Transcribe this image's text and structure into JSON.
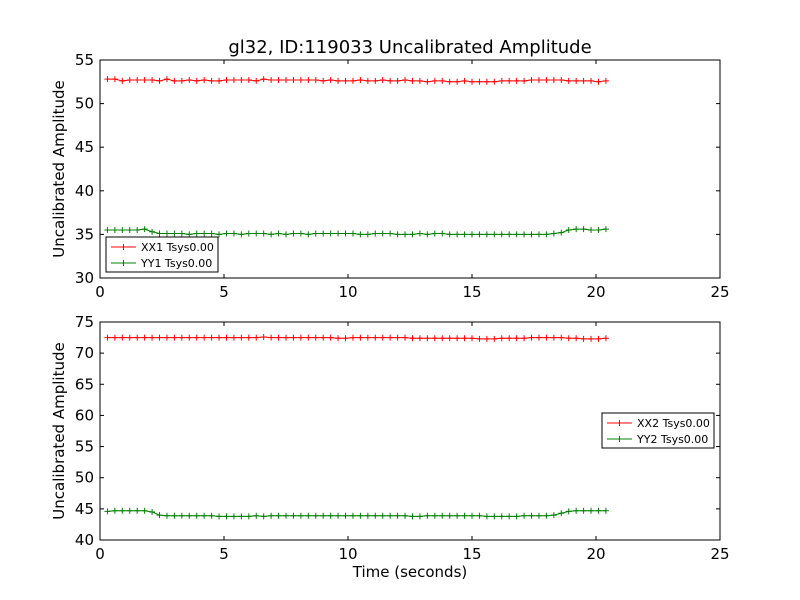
{
  "figure": {
    "title": "gl32, ID:119033 Uncalibrated Amplitude",
    "xlabel": "Time (seconds)"
  },
  "chart_data": [
    {
      "type": "line",
      "ylabel": "Uncalibrated Amplitude",
      "xlim": [
        0,
        25
      ],
      "ylim": [
        30,
        55
      ],
      "xticks": [
        0,
        5,
        10,
        15,
        20,
        25
      ],
      "yticks": [
        30,
        35,
        40,
        45,
        50,
        55
      ],
      "legend_position": "lower-left",
      "marker": "plus",
      "x": [
        0.3,
        0.6,
        0.9,
        1.2,
        1.5,
        1.8,
        2.1,
        2.4,
        2.7,
        3.0,
        3.3,
        3.6,
        3.9,
        4.2,
        4.5,
        4.8,
        5.1,
        5.4,
        5.7,
        6.0,
        6.3,
        6.6,
        6.9,
        7.2,
        7.5,
        7.8,
        8.1,
        8.4,
        8.7,
        9.0,
        9.3,
        9.6,
        9.9,
        10.2,
        10.5,
        10.8,
        11.1,
        11.4,
        11.7,
        12.0,
        12.3,
        12.6,
        12.9,
        13.2,
        13.5,
        13.8,
        14.1,
        14.4,
        14.7,
        15.0,
        15.3,
        15.6,
        15.9,
        16.2,
        16.5,
        16.8,
        17.1,
        17.4,
        17.7,
        18.0,
        18.3,
        18.6,
        18.9,
        19.2,
        19.5,
        19.8,
        20.1,
        20.4
      ],
      "series": [
        {
          "name": "XX1 Tsys0.00",
          "color": "#ff0000",
          "values": [
            52.8,
            52.8,
            52.6,
            52.7,
            52.7,
            52.7,
            52.7,
            52.6,
            52.8,
            52.6,
            52.6,
            52.7,
            52.6,
            52.7,
            52.6,
            52.6,
            52.7,
            52.7,
            52.7,
            52.7,
            52.6,
            52.8,
            52.7,
            52.7,
            52.7,
            52.7,
            52.7,
            52.7,
            52.7,
            52.6,
            52.7,
            52.6,
            52.6,
            52.6,
            52.7,
            52.6,
            52.6,
            52.7,
            52.6,
            52.6,
            52.7,
            52.6,
            52.6,
            52.5,
            52.6,
            52.6,
            52.5,
            52.5,
            52.6,
            52.5,
            52.5,
            52.5,
            52.5,
            52.6,
            52.6,
            52.6,
            52.6,
            52.7,
            52.7,
            52.7,
            52.7,
            52.7,
            52.6,
            52.6,
            52.6,
            52.6,
            52.5,
            52.6
          ]
        },
        {
          "name": "YY1 Tsys0.00",
          "color": "#008000",
          "values": [
            35.5,
            35.5,
            35.5,
            35.5,
            35.5,
            35.6,
            35.3,
            35.1,
            35.1,
            35.1,
            35.1,
            35.0,
            35.1,
            35.1,
            35.1,
            35.0,
            35.1,
            35.1,
            35.0,
            35.1,
            35.1,
            35.1,
            35.0,
            35.1,
            35.0,
            35.1,
            35.1,
            35.0,
            35.1,
            35.1,
            35.1,
            35.1,
            35.1,
            35.1,
            35.0,
            35.0,
            35.1,
            35.1,
            35.1,
            35.0,
            35.0,
            35.0,
            35.1,
            35.0,
            35.1,
            35.1,
            35.0,
            35.0,
            35.0,
            35.0,
            35.0,
            35.0,
            35.0,
            35.0,
            35.0,
            35.0,
            35.0,
            35.0,
            35.0,
            35.0,
            35.1,
            35.2,
            35.5,
            35.6,
            35.6,
            35.5,
            35.5,
            35.6
          ]
        }
      ]
    },
    {
      "type": "line",
      "ylabel": "Uncalibrated Amplitude",
      "xlim": [
        0,
        25
      ],
      "ylim": [
        40,
        75
      ],
      "xticks": [
        0,
        5,
        10,
        15,
        20,
        25
      ],
      "yticks": [
        40,
        45,
        50,
        55,
        60,
        65,
        70,
        75
      ],
      "legend_position": "center-right",
      "marker": "plus",
      "x": [
        0.3,
        0.6,
        0.9,
        1.2,
        1.5,
        1.8,
        2.1,
        2.4,
        2.7,
        3.0,
        3.3,
        3.6,
        3.9,
        4.2,
        4.5,
        4.8,
        5.1,
        5.4,
        5.7,
        6.0,
        6.3,
        6.6,
        6.9,
        7.2,
        7.5,
        7.8,
        8.1,
        8.4,
        8.7,
        9.0,
        9.3,
        9.6,
        9.9,
        10.2,
        10.5,
        10.8,
        11.1,
        11.4,
        11.7,
        12.0,
        12.3,
        12.6,
        12.9,
        13.2,
        13.5,
        13.8,
        14.1,
        14.4,
        14.7,
        15.0,
        15.3,
        15.6,
        15.9,
        16.2,
        16.5,
        16.8,
        17.1,
        17.4,
        17.7,
        18.0,
        18.3,
        18.6,
        18.9,
        19.2,
        19.5,
        19.8,
        20.1,
        20.4
      ],
      "series": [
        {
          "name": "XX2 Tsys0.00",
          "color": "#ff0000",
          "values": [
            72.5,
            72.5,
            72.5,
            72.5,
            72.5,
            72.5,
            72.5,
            72.5,
            72.5,
            72.5,
            72.5,
            72.5,
            72.5,
            72.5,
            72.5,
            72.5,
            72.5,
            72.5,
            72.5,
            72.5,
            72.5,
            72.6,
            72.5,
            72.5,
            72.5,
            72.5,
            72.5,
            72.5,
            72.5,
            72.5,
            72.5,
            72.4,
            72.4,
            72.5,
            72.5,
            72.5,
            72.5,
            72.5,
            72.5,
            72.5,
            72.5,
            72.4,
            72.4,
            72.4,
            72.4,
            72.4,
            72.4,
            72.4,
            72.4,
            72.4,
            72.3,
            72.3,
            72.3,
            72.4,
            72.4,
            72.4,
            72.4,
            72.5,
            72.5,
            72.5,
            72.5,
            72.5,
            72.4,
            72.4,
            72.3,
            72.3,
            72.3,
            72.4
          ]
        },
        {
          "name": "YY2 Tsys0.00",
          "color": "#008000",
          "values": [
            44.6,
            44.7,
            44.7,
            44.7,
            44.7,
            44.7,
            44.5,
            44.0,
            43.9,
            43.9,
            43.9,
            43.9,
            43.9,
            43.9,
            43.9,
            43.8,
            43.8,
            43.8,
            43.8,
            43.8,
            43.9,
            43.8,
            43.9,
            43.9,
            43.9,
            43.9,
            43.9,
            43.9,
            43.9,
            43.9,
            43.9,
            43.9,
            43.9,
            43.9,
            43.9,
            43.9,
            43.9,
            43.9,
            43.9,
            43.9,
            43.9,
            43.8,
            43.8,
            43.9,
            43.9,
            43.9,
            43.9,
            43.9,
            43.9,
            43.9,
            43.9,
            43.8,
            43.8,
            43.8,
            43.8,
            43.8,
            43.9,
            43.9,
            43.9,
            43.9,
            44.0,
            44.3,
            44.6,
            44.7,
            44.7,
            44.7,
            44.7,
            44.7
          ]
        }
      ]
    }
  ]
}
